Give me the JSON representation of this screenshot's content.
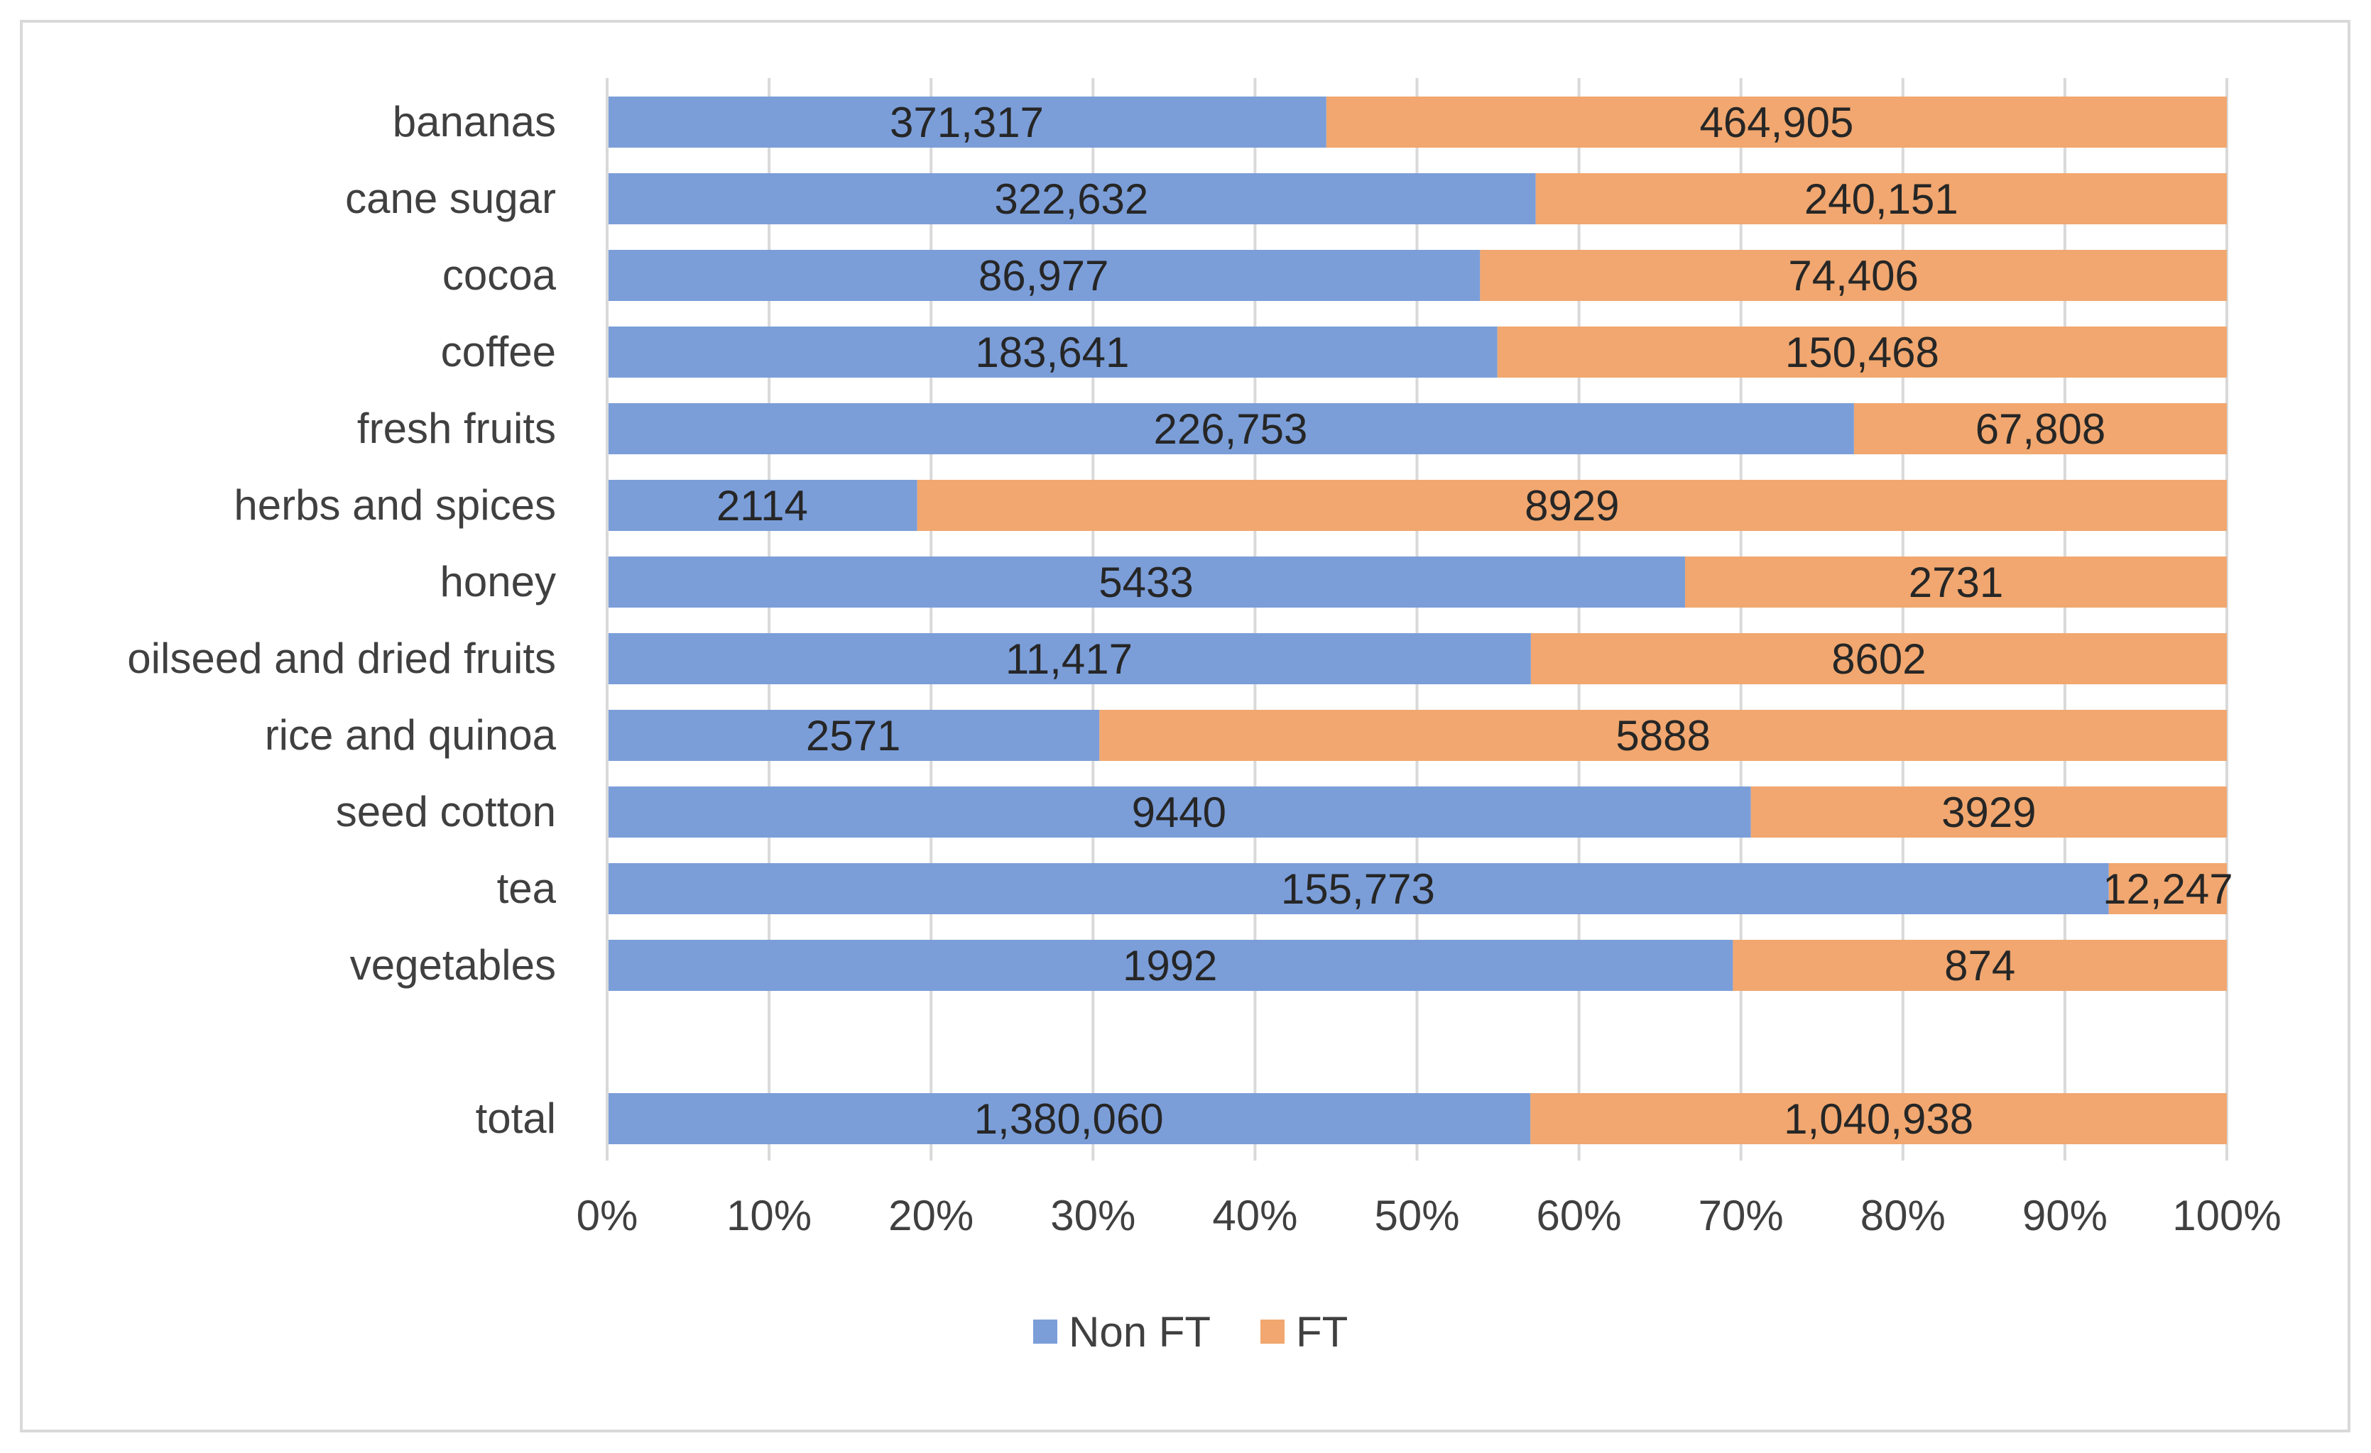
{
  "chart_data": {
    "type": "bar",
    "orientation": "horizontal",
    "stacking": "percent",
    "categories": [
      "bananas",
      "cane sugar",
      "cocoa",
      "coffee",
      "fresh fruits",
      "herbs and spices",
      "honey",
      "oilseed and dried fruits",
      "rice and quinoa",
      "seed cotton",
      "tea",
      "vegetables",
      "",
      "total"
    ],
    "series": [
      {
        "name": "Non FT",
        "color": "#7b9ed9",
        "values": [
          371317,
          322632,
          86977,
          183641,
          226753,
          2114,
          5433,
          11417,
          2571,
          9440,
          155773,
          1992,
          null,
          1380060
        ],
        "labels": [
          "371,317",
          "322,632",
          "86,977",
          "183,641",
          "226,753",
          "2114",
          "5433",
          "11,417",
          "2571",
          "9440",
          "155,773",
          "1992",
          "",
          "1,380,060"
        ]
      },
      {
        "name": "FT",
        "color": "#f1a76f",
        "values": [
          464905,
          240151,
          74406,
          150468,
          67808,
          8929,
          2731,
          8602,
          5888,
          3929,
          12247,
          874,
          null,
          1040938
        ],
        "labels": [
          "464,905",
          "240,151",
          "74,406",
          "150,468",
          "67,808",
          "8929",
          "2731",
          "8602",
          "5888",
          "3929",
          "12,247",
          "874",
          "",
          "1,040,938"
        ]
      }
    ],
    "xlim": [
      0,
      100
    ],
    "x_ticks": [
      "0%",
      "10%",
      "20%",
      "30%",
      "40%",
      "50%",
      "60%",
      "70%",
      "80%",
      "90%",
      "100%"
    ],
    "grid": "vertical",
    "legend": "bottom-center"
  }
}
